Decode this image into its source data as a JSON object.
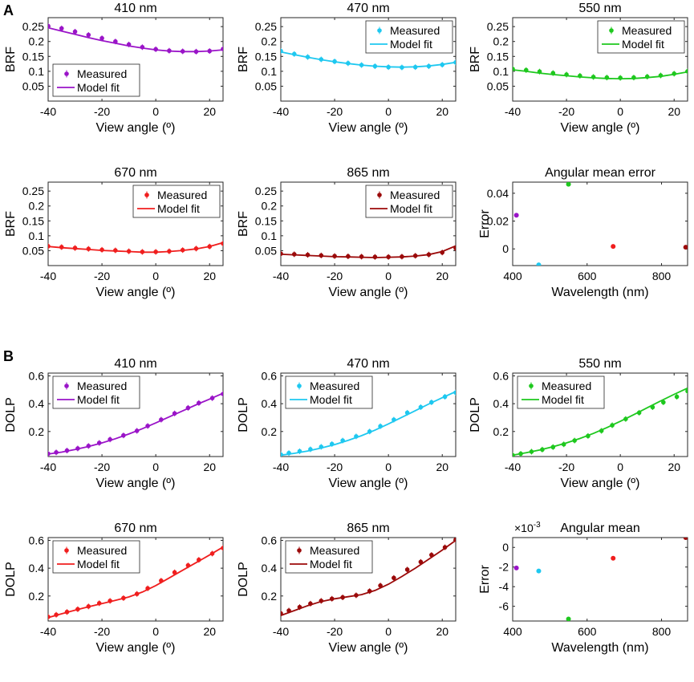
{
  "panel_letters": [
    "A",
    "B"
  ],
  "chart_data": [
    {
      "id": "a1",
      "type": "line",
      "title": "410 nm",
      "xlabel": "View angle (º)",
      "ylabel": "BRF",
      "color": "#9a14c8",
      "xlim": [
        -40,
        25
      ],
      "ylim": [
        0,
        0.28
      ],
      "xticks": [
        -40,
        -20,
        0,
        20
      ],
      "xtick_labels": [
        "-40",
        "-20",
        "0",
        "20"
      ],
      "yticks": [
        0.05,
        0.1,
        0.15,
        0.2,
        0.25
      ],
      "ytick_labels": [
        "0.05",
        "0.1",
        "0.15",
        "0.2",
        "0.25"
      ],
      "legend": {
        "measured": "Measured",
        "fit": "Model fit",
        "position": "bottom-left"
      },
      "measured_x": [
        -40,
        -35,
        -30,
        -25,
        -20,
        -15,
        -10,
        -5,
        0,
        5,
        10,
        15,
        20,
        25
      ],
      "measured_y": [
        0.252,
        0.244,
        0.233,
        0.222,
        0.211,
        0.2,
        0.19,
        0.181,
        0.174,
        0.169,
        0.167,
        0.166,
        0.168,
        0.175
      ],
      "fit_x": [
        -40,
        -35,
        -30,
        -25,
        -20,
        -15,
        -10,
        -5,
        0,
        5,
        10,
        15,
        20,
        25
      ],
      "fit_y": [
        0.246,
        0.235,
        0.224,
        0.213,
        0.203,
        0.194,
        0.185,
        0.178,
        0.172,
        0.168,
        0.166,
        0.166,
        0.168,
        0.172
      ]
    },
    {
      "id": "a2",
      "type": "line",
      "title": "470 nm",
      "xlabel": "View angle (º)",
      "ylabel": "BRF",
      "color": "#1ec8f0",
      "xlim": [
        -40,
        25
      ],
      "ylim": [
        0,
        0.28
      ],
      "xticks": [
        -40,
        -20,
        0,
        20
      ],
      "xtick_labels": [
        "-40",
        "-20",
        "0",
        "20"
      ],
      "yticks": [
        0.05,
        0.1,
        0.15,
        0.2,
        0.25
      ],
      "ytick_labels": [
        "0.05",
        "0.1",
        "0.15",
        "0.2",
        "0.25"
      ],
      "legend": {
        "measured": "Measured",
        "fit": "Model fit",
        "position": "top-right"
      },
      "measured_x": [
        -40,
        -35,
        -30,
        -25,
        -20,
        -15,
        -10,
        -5,
        0,
        5,
        10,
        15,
        20,
        25
      ],
      "measured_y": [
        0.168,
        0.158,
        0.148,
        0.14,
        0.133,
        0.127,
        0.121,
        0.117,
        0.114,
        0.113,
        0.114,
        0.117,
        0.122,
        0.13
      ],
      "fit_x": [
        -40,
        -35,
        -30,
        -25,
        -20,
        -15,
        -10,
        -5,
        0,
        5,
        10,
        15,
        20,
        25
      ],
      "fit_y": [
        0.165,
        0.156,
        0.147,
        0.139,
        0.132,
        0.126,
        0.121,
        0.117,
        0.115,
        0.114,
        0.115,
        0.118,
        0.123,
        0.13
      ]
    },
    {
      "id": "a3",
      "type": "line",
      "title": "550 nm",
      "xlabel": "View angle (º)",
      "ylabel": "BRF",
      "color": "#1ec81e",
      "xlim": [
        -40,
        25
      ],
      "ylim": [
        0,
        0.28
      ],
      "xticks": [
        -40,
        -20,
        0,
        20
      ],
      "xtick_labels": [
        "-40",
        "-20",
        "0",
        "20"
      ],
      "yticks": [
        0.05,
        0.1,
        0.15,
        0.2,
        0.25
      ],
      "ytick_labels": [
        "0.05",
        "0.1",
        "0.15",
        "0.2",
        "0.25"
      ],
      "legend": {
        "measured": "Measured",
        "fit": "Model fit",
        "position": "top-right"
      },
      "measured_x": [
        -40,
        -35,
        -30,
        -25,
        -20,
        -15,
        -10,
        -5,
        0,
        5,
        10,
        15,
        20,
        25
      ],
      "measured_y": [
        0.108,
        0.104,
        0.099,
        0.094,
        0.089,
        0.085,
        0.081,
        0.079,
        0.078,
        0.079,
        0.082,
        0.086,
        0.092,
        0.1
      ],
      "fit_x": [
        -40,
        -35,
        -30,
        -25,
        -20,
        -15,
        -10,
        -5,
        0,
        5,
        10,
        15,
        20,
        25
      ],
      "fit_y": [
        0.105,
        0.1,
        0.094,
        0.089,
        0.085,
        0.081,
        0.078,
        0.076,
        0.075,
        0.076,
        0.079,
        0.083,
        0.09,
        0.098
      ]
    },
    {
      "id": "a4",
      "type": "line",
      "title": "670 nm",
      "xlabel": "View angle (º)",
      "ylabel": "BRF",
      "color": "#f01e1e",
      "xlim": [
        -40,
        25
      ],
      "ylim": [
        0,
        0.28
      ],
      "xticks": [
        -40,
        -20,
        0,
        20
      ],
      "xtick_labels": [
        "-40",
        "-20",
        "0",
        "20"
      ],
      "yticks": [
        0.05,
        0.1,
        0.15,
        0.2,
        0.25
      ],
      "ytick_labels": [
        "0.05",
        "0.1",
        "0.15",
        "0.2",
        "0.25"
      ],
      "legend": {
        "measured": "Measured",
        "fit": "Model fit",
        "position": "top-right"
      },
      "measured_x": [
        -40,
        -35,
        -30,
        -25,
        -20,
        -15,
        -10,
        -5,
        0,
        5,
        10,
        15,
        20,
        25
      ],
      "measured_y": [
        0.065,
        0.062,
        0.059,
        0.056,
        0.053,
        0.051,
        0.048,
        0.046,
        0.046,
        0.048,
        0.052,
        0.057,
        0.064,
        0.074
      ],
      "fit_x": [
        -40,
        -35,
        -30,
        -25,
        -20,
        -15,
        -10,
        -5,
        0,
        5,
        10,
        15,
        20,
        25
      ],
      "fit_y": [
        0.064,
        0.06,
        0.057,
        0.054,
        0.051,
        0.049,
        0.047,
        0.045,
        0.045,
        0.047,
        0.051,
        0.056,
        0.064,
        0.077
      ]
    },
    {
      "id": "a5",
      "type": "line",
      "title": "865 nm",
      "xlabel": "View angle (º)",
      "ylabel": "BRF",
      "color": "#9b0a0a",
      "xlim": [
        -40,
        25
      ],
      "ylim": [
        0,
        0.28
      ],
      "xticks": [
        -40,
        -20,
        0,
        20
      ],
      "xtick_labels": [
        "-40",
        "-20",
        "0",
        "20"
      ],
      "yticks": [
        0.05,
        0.1,
        0.15,
        0.2,
        0.25
      ],
      "ytick_labels": [
        "0.05",
        "0.1",
        "0.15",
        "0.2",
        "0.25"
      ],
      "legend": {
        "measured": "Measured",
        "fit": "Model fit",
        "position": "top-right"
      },
      "measured_x": [
        -40,
        -35,
        -30,
        -25,
        -20,
        -15,
        -10,
        -5,
        0,
        5,
        10,
        15,
        20,
        25
      ],
      "measured_y": [
        0.04,
        0.038,
        0.036,
        0.034,
        0.032,
        0.031,
        0.03,
        0.029,
        0.029,
        0.03,
        0.033,
        0.037,
        0.044,
        0.058
      ],
      "fit_x": [
        -40,
        -35,
        -30,
        -25,
        -20,
        -15,
        -10,
        -5,
        0,
        5,
        10,
        15,
        20,
        25
      ],
      "fit_y": [
        0.038,
        0.036,
        0.034,
        0.032,
        0.03,
        0.029,
        0.028,
        0.027,
        0.028,
        0.029,
        0.032,
        0.037,
        0.047,
        0.066
      ]
    },
    {
      "id": "a6",
      "type": "scatter",
      "title": "Angular mean error",
      "xlabel": "Wavelength (nm)",
      "ylabel": "Error",
      "xlim": [
        400,
        870
      ],
      "ylim": [
        -0.012,
        0.048
      ],
      "xticks": [
        400,
        600,
        800
      ],
      "xtick_labels": [
        "400",
        "600",
        "800"
      ],
      "yticks": [
        0,
        0.02,
        0.04
      ],
      "ytick_labels": [
        "0",
        "0.02",
        "0.04"
      ],
      "points": [
        {
          "x": 410,
          "y": 0.0242,
          "color": "#9a14c8"
        },
        {
          "x": 470,
          "y": -0.0115,
          "color": "#1ec8f0"
        },
        {
          "x": 550,
          "y": 0.0465,
          "color": "#1ec81e"
        },
        {
          "x": 670,
          "y": 0.0018,
          "color": "#f01e1e"
        },
        {
          "x": 865,
          "y": 0.0012,
          "color": "#9b0a0a"
        }
      ]
    },
    {
      "id": "b1",
      "type": "line",
      "title": "410 nm",
      "xlabel": "View angle (º)",
      "ylabel": "DOLP",
      "color": "#9a14c8",
      "xlim": [
        -40,
        25
      ],
      "ylim": [
        0.02,
        0.62
      ],
      "xticks": [
        -40,
        -20,
        0,
        20
      ],
      "xtick_labels": [
        "-40",
        "-20",
        "0",
        "20"
      ],
      "yticks": [
        0.2,
        0.4,
        0.6
      ],
      "ytick_labels": [
        "0.2",
        "0.4",
        "0.6"
      ],
      "legend": {
        "measured": "Measured",
        "fit": "Model fit",
        "position": "top-left"
      },
      "measured_x": [
        -40,
        -37,
        -33,
        -29,
        -25,
        -21,
        -17,
        -12,
        -7,
        -3,
        2,
        7,
        12,
        16,
        21,
        25
      ],
      "measured_y": [
        0.04,
        0.05,
        0.063,
        0.078,
        0.096,
        0.118,
        0.143,
        0.172,
        0.205,
        0.24,
        0.285,
        0.33,
        0.37,
        0.405,
        0.44,
        0.47
      ],
      "fit_x": [
        -40,
        -35,
        -30,
        -25,
        -20,
        -15,
        -10,
        -5,
        0,
        5,
        10,
        15,
        20,
        25
      ],
      "fit_y": [
        0.038,
        0.052,
        0.07,
        0.092,
        0.118,
        0.148,
        0.182,
        0.22,
        0.262,
        0.305,
        0.348,
        0.392,
        0.433,
        0.475
      ]
    },
    {
      "id": "b2",
      "type": "line",
      "title": "470 nm",
      "xlabel": "View angle (º)",
      "ylabel": "DOLP",
      "color": "#1ec8f0",
      "xlim": [
        -40,
        25
      ],
      "ylim": [
        0.02,
        0.62
      ],
      "xticks": [
        -40,
        -20,
        0,
        20
      ],
      "xtick_labels": [
        "-40",
        "-20",
        "0",
        "20"
      ],
      "yticks": [
        0.2,
        0.4,
        0.6
      ],
      "ytick_labels": [
        "0.2",
        "0.4",
        "0.6"
      ],
      "legend": {
        "measured": "Measured",
        "fit": "Model fit",
        "position": "top-left"
      },
      "measured_x": [
        -40,
        -37,
        -33,
        -29,
        -25,
        -21,
        -17,
        -12,
        -7,
        -3,
        2,
        7,
        12,
        16,
        21,
        25
      ],
      "measured_y": [
        0.035,
        0.045,
        0.058,
        0.072,
        0.09,
        0.11,
        0.135,
        0.165,
        0.2,
        0.238,
        0.285,
        0.335,
        0.375,
        0.41,
        0.45,
        0.48
      ],
      "fit_x": [
        -40,
        -35,
        -30,
        -25,
        -20,
        -15,
        -10,
        -5,
        0,
        5,
        10,
        15,
        20,
        25
      ],
      "fit_y": [
        0.03,
        0.043,
        0.06,
        0.081,
        0.106,
        0.136,
        0.17,
        0.21,
        0.255,
        0.302,
        0.35,
        0.398,
        0.443,
        0.487
      ]
    },
    {
      "id": "b3",
      "type": "line",
      "title": "550 nm",
      "xlabel": "View angle (º)",
      "ylabel": "DOLP",
      "color": "#1ec81e",
      "xlim": [
        -40,
        25
      ],
      "ylim": [
        0.02,
        0.62
      ],
      "xticks": [
        -40,
        -20,
        0,
        20
      ],
      "xtick_labels": [
        "-40",
        "-20",
        "0",
        "20"
      ],
      "yticks": [
        0.2,
        0.4,
        0.6
      ],
      "ytick_labels": [
        "0.2",
        "0.4",
        "0.6"
      ],
      "legend": {
        "measured": "Measured",
        "fit": "Model fit",
        "position": "top-left"
      },
      "measured_x": [
        -40,
        -37,
        -33,
        -29,
        -25,
        -21,
        -17,
        -12,
        -7,
        -3,
        2,
        7,
        12,
        16,
        21,
        25
      ],
      "measured_y": [
        0.03,
        0.04,
        0.055,
        0.07,
        0.088,
        0.108,
        0.135,
        0.168,
        0.205,
        0.245,
        0.29,
        0.335,
        0.375,
        0.41,
        0.45,
        0.49
      ],
      "fit_x": [
        -40,
        -35,
        -30,
        -25,
        -20,
        -15,
        -10,
        -5,
        0,
        5,
        10,
        15,
        20,
        25
      ],
      "fit_y": [
        0.03,
        0.047,
        0.067,
        0.091,
        0.118,
        0.15,
        0.186,
        0.228,
        0.273,
        0.321,
        0.371,
        0.42,
        0.467,
        0.512
      ]
    },
    {
      "id": "b4",
      "type": "line",
      "title": "670 nm",
      "xlabel": "View angle (º)",
      "ylabel": "DOLP",
      "color": "#f01e1e",
      "xlim": [
        -40,
        25
      ],
      "ylim": [
        0.02,
        0.62
      ],
      "xticks": [
        -40,
        -20,
        0,
        20
      ],
      "xtick_labels": [
        "-40",
        "-20",
        "0",
        "20"
      ],
      "yticks": [
        0.2,
        0.4,
        0.6
      ],
      "ytick_labels": [
        "0.2",
        "0.4",
        "0.6"
      ],
      "legend": {
        "measured": "Measured",
        "fit": "Model fit",
        "position": "top-left"
      },
      "measured_x": [
        -40,
        -37,
        -33,
        -29,
        -25,
        -21,
        -17,
        -12,
        -7,
        -3,
        2,
        7,
        12,
        16,
        21,
        25
      ],
      "measured_y": [
        0.05,
        0.065,
        0.085,
        0.105,
        0.125,
        0.148,
        0.165,
        0.185,
        0.215,
        0.255,
        0.31,
        0.37,
        0.42,
        0.46,
        0.505,
        0.545
      ],
      "fit_x": [
        -40,
        -35,
        -30,
        -25,
        -20,
        -15,
        -10,
        -5,
        0,
        5,
        10,
        15,
        20,
        25
      ],
      "fit_y": [
        0.045,
        0.072,
        0.098,
        0.122,
        0.145,
        0.168,
        0.193,
        0.228,
        0.275,
        0.33,
        0.385,
        0.44,
        0.495,
        0.552
      ]
    },
    {
      "id": "b5",
      "type": "line",
      "title": "865 nm",
      "xlabel": "View angle (º)",
      "ylabel": "DOLP",
      "color": "#9b0a0a",
      "xlim": [
        -40,
        25
      ],
      "ylim": [
        0.02,
        0.62
      ],
      "xticks": [
        -40,
        -20,
        0,
        20
      ],
      "xtick_labels": [
        "-40",
        "-20",
        "0",
        "20"
      ],
      "yticks": [
        0.2,
        0.4,
        0.6
      ],
      "ytick_labels": [
        "0.2",
        "0.4",
        "0.6"
      ],
      "legend": {
        "measured": "Measured",
        "fit": "Model fit",
        "position": "top-left"
      },
      "measured_x": [
        -40,
        -37,
        -33,
        -29,
        -25,
        -21,
        -17,
        -12,
        -7,
        -3,
        2,
        7,
        12,
        16,
        21,
        25
      ],
      "measured_y": [
        0.075,
        0.095,
        0.12,
        0.145,
        0.165,
        0.18,
        0.19,
        0.205,
        0.235,
        0.275,
        0.33,
        0.39,
        0.445,
        0.495,
        0.55,
        0.605
      ],
      "fit_x": [
        -40,
        -35,
        -30,
        -25,
        -20,
        -15,
        -10,
        -5,
        0,
        5,
        10,
        15,
        20,
        25
      ],
      "fit_y": [
        0.06,
        0.095,
        0.13,
        0.16,
        0.18,
        0.195,
        0.21,
        0.24,
        0.285,
        0.34,
        0.4,
        0.465,
        0.53,
        0.6
      ]
    },
    {
      "id": "b6",
      "type": "scatter",
      "title": "Angular mean",
      "exponent_label": "×10^-3",
      "exponent_base": "×10",
      "exponent_power": "-3",
      "xlabel": "Wavelength (nm)",
      "ylabel": "Error",
      "xlim": [
        400,
        870
      ],
      "ylim": [
        -7.5,
        1
      ],
      "xticks": [
        400,
        600,
        800
      ],
      "xtick_labels": [
        "400",
        "600",
        "800"
      ],
      "yticks": [
        -6,
        -4,
        -2,
        0
      ],
      "ytick_labels": [
        "-6",
        "-4",
        "-2",
        "0"
      ],
      "points": [
        {
          "x": 410,
          "y": -2.1,
          "color": "#9a14c8"
        },
        {
          "x": 470,
          "y": -2.4,
          "color": "#1ec8f0"
        },
        {
          "x": 550,
          "y": -7.3,
          "color": "#1ec81e"
        },
        {
          "x": 670,
          "y": -1.1,
          "color": "#f01e1e"
        },
        {
          "x": 865,
          "y": 1.0,
          "color": "#9b0a0a"
        }
      ]
    }
  ]
}
